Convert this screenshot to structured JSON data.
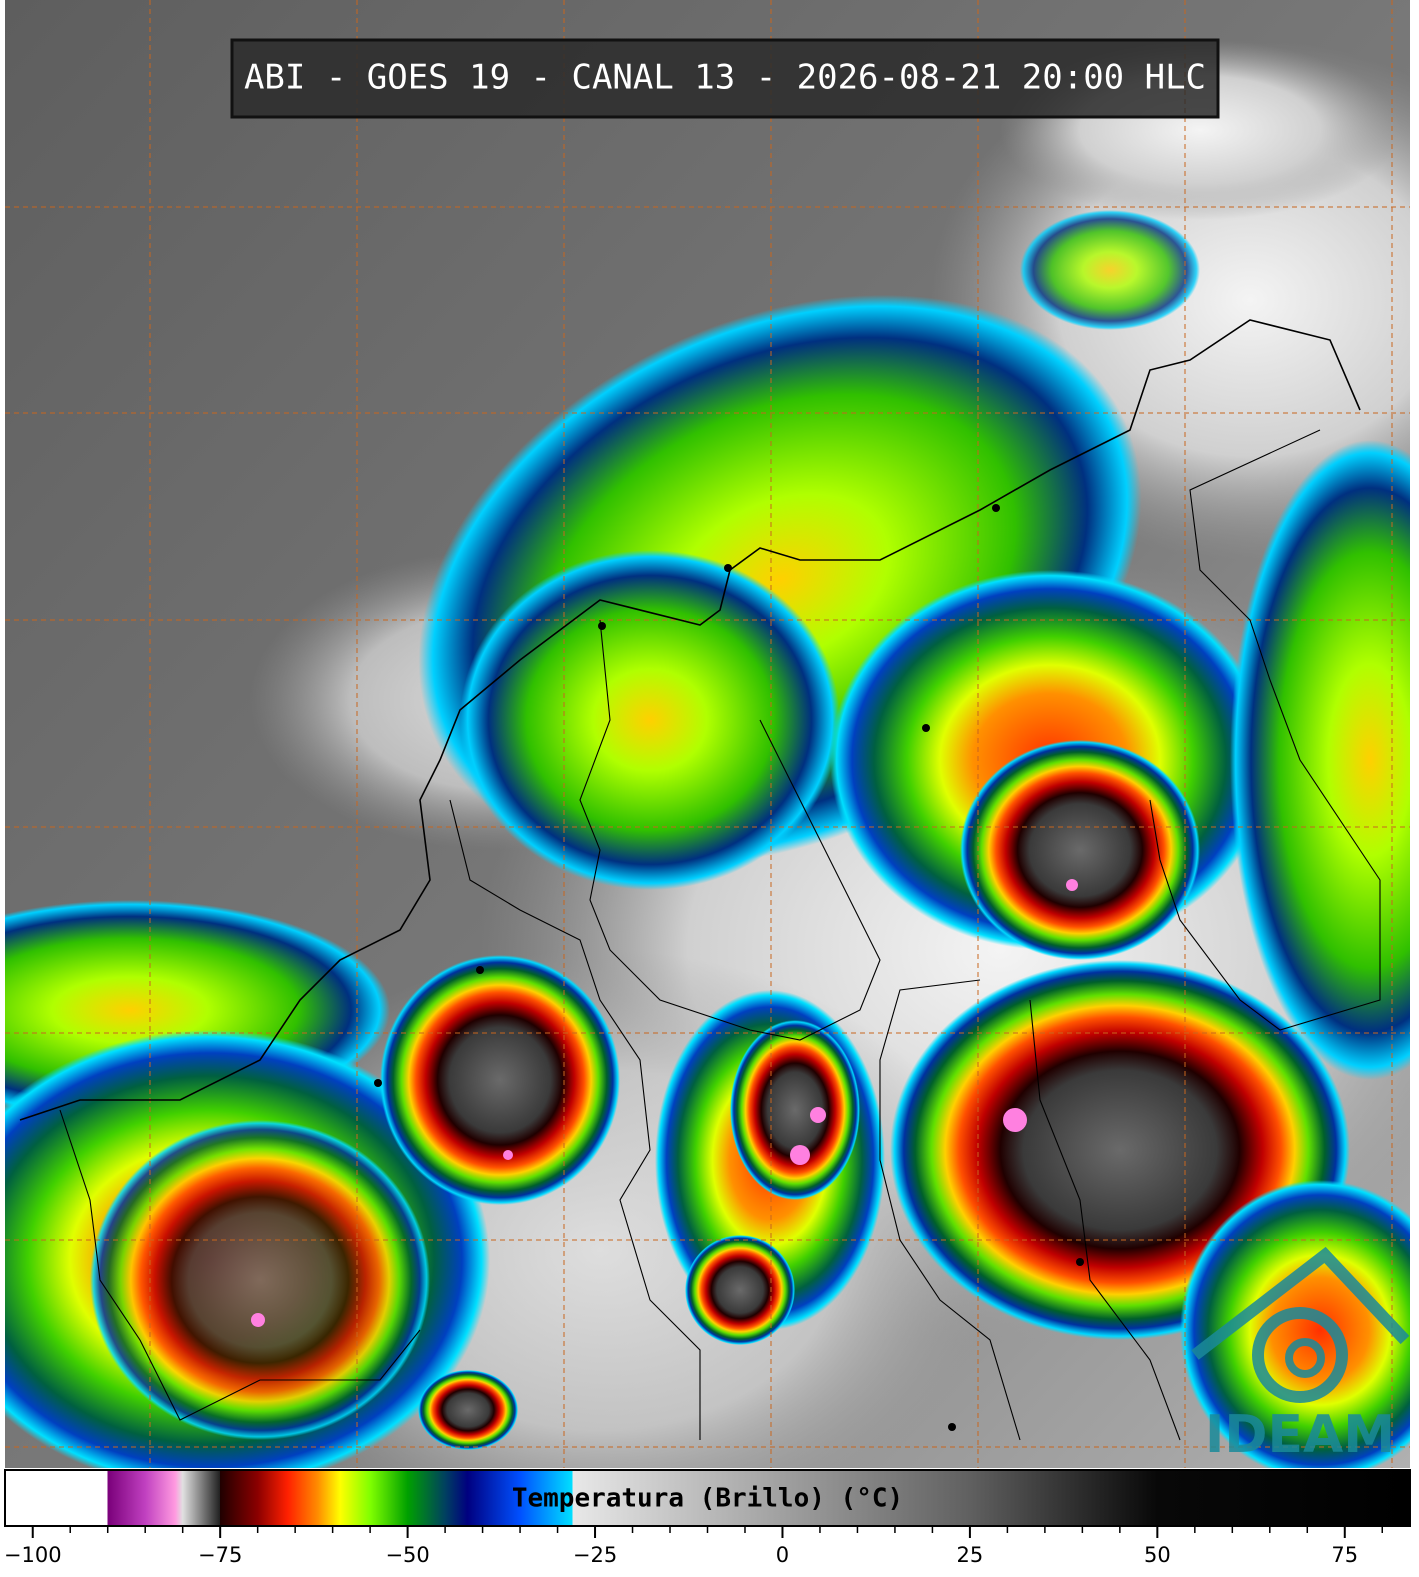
{
  "header": {
    "title": "ABI - GOES 19 - CANAL 13 - 2026-08-21 20:00 HLC"
  },
  "logo": {
    "text": "IDEAM"
  },
  "chart_data": {
    "type": "colorbar",
    "xlabel": "Temperatura (Brillo) (°C)",
    "xlim": [
      -103.7,
      83.7
    ],
    "xticks": [
      {
        "value": -100,
        "label": "−100"
      },
      {
        "value": -75,
        "label": "−75"
      },
      {
        "value": -50,
        "label": "−50"
      },
      {
        "value": -25,
        "label": "−25"
      },
      0,
      25,
      50,
      75
    ],
    "xminorticks": [
      -95,
      -90,
      -85,
      -80,
      -70,
      -65,
      -60,
      -55,
      -45,
      -40,
      -35,
      -30,
      -20,
      -15,
      -10,
      -5,
      5,
      10,
      15,
      20,
      30,
      35,
      40,
      45,
      55,
      60,
      65,
      70,
      80
    ],
    "colorscale": [
      {
        "value": -90,
        "color": "#ffffff"
      },
      {
        "value": -90,
        "color": "#7a007a"
      },
      {
        "value": -85,
        "color": "#c040c0"
      },
      {
        "value": -81,
        "color": "#ff9ae0"
      },
      {
        "value": -80,
        "color": "#e0e0e0"
      },
      {
        "value": -75,
        "color": "#202020"
      },
      {
        "value": -75,
        "color": "#200000"
      },
      {
        "value": -70,
        "color": "#8b0000"
      },
      {
        "value": -66,
        "color": "#ff2000"
      },
      {
        "value": -62,
        "color": "#ff8c00"
      },
      {
        "value": -59,
        "color": "#ffff00"
      },
      {
        "value": -55,
        "color": "#80ff00"
      },
      {
        "value": -50,
        "color": "#00a000"
      },
      {
        "value": -45,
        "color": "#004060"
      },
      {
        "value": -42,
        "color": "#000080"
      },
      {
        "value": -35,
        "color": "#0050ff"
      },
      {
        "value": -28,
        "color": "#00e0ff"
      },
      {
        "value": -28,
        "color": "#e8e8e8"
      },
      {
        "value": 0,
        "color": "#a0a0a0"
      },
      {
        "value": 25,
        "color": "#606060"
      },
      {
        "value": 50,
        "color": "#080808"
      },
      {
        "value": 83.7,
        "color": "#000000"
      }
    ]
  }
}
